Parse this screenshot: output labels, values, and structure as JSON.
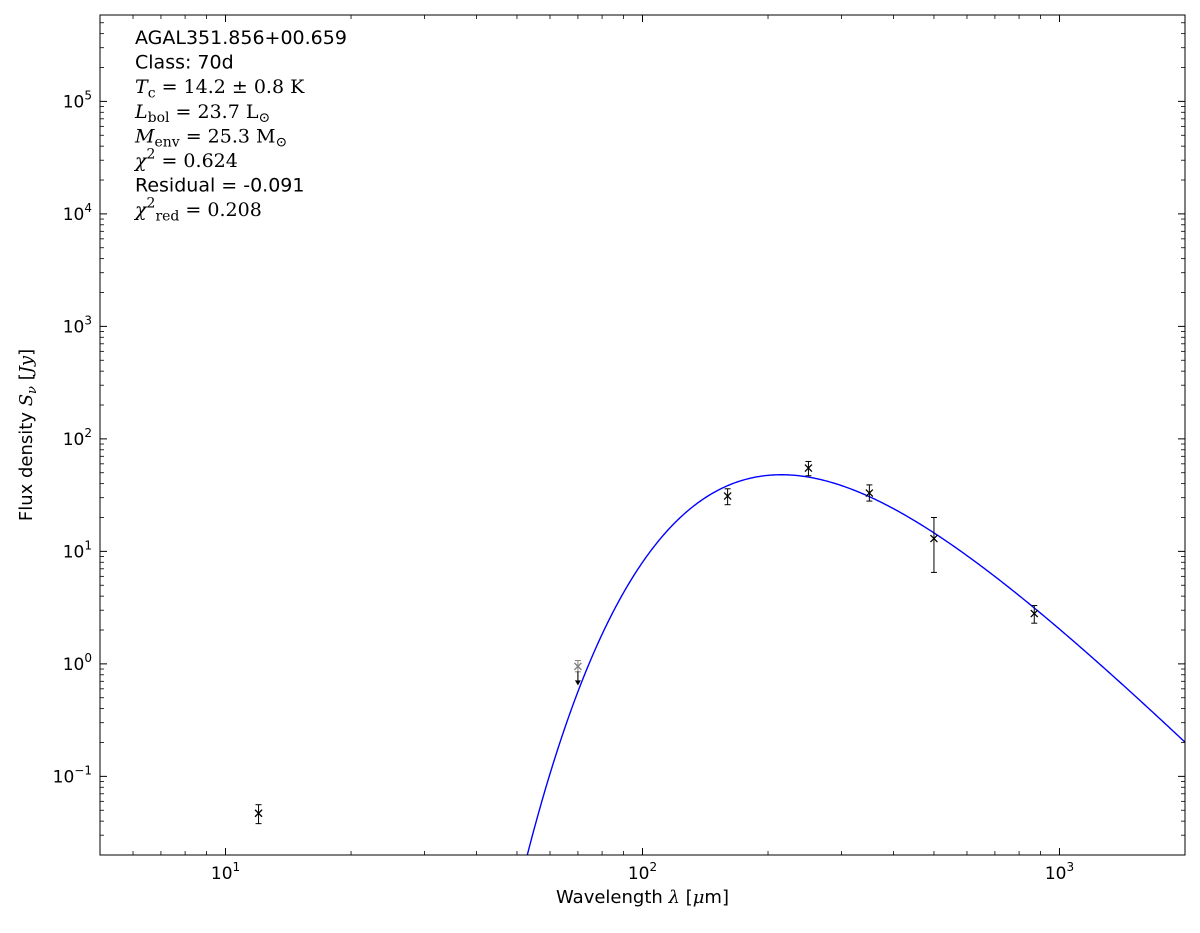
{
  "figure": {
    "background": "#ffffff"
  },
  "chart_data": {
    "type": "scatter",
    "title": "",
    "annotation": {
      "source_name": "AGAL351.856+00.659",
      "class": "70d",
      "T_c": "14.2 ± 0.8 K",
      "L_bol": "23.7 L⊙",
      "M_env": "25.3 M⊙",
      "chi2": "0.624",
      "residual": "-0.091",
      "chi2_red": "0.208",
      "lines": [
        [
          {
            "t": "AGAL351.856+00.659",
            "f": "sans"
          }
        ],
        [
          {
            "t": "Class: 70d",
            "f": "sans"
          }
        ],
        [
          {
            "t": "T",
            "f": "si"
          },
          {
            "t": "c",
            "f": "s",
            "p": "sub"
          },
          {
            "t": " = 14.2 ± 0.8 K",
            "f": "s"
          }
        ],
        [
          {
            "t": "L",
            "f": "si"
          },
          {
            "t": "bol",
            "f": "s",
            "p": "sub"
          },
          {
            "t": " = 23.7 L",
            "f": "s"
          },
          {
            "t": "⊙",
            "f": "s",
            "p": "sub"
          }
        ],
        [
          {
            "t": "M",
            "f": "si"
          },
          {
            "t": "env",
            "f": "s",
            "p": "sub"
          },
          {
            "t": " = 25.3 M",
            "f": "s"
          },
          {
            "t": "⊙",
            "f": "s",
            "p": "sub"
          }
        ],
        [
          {
            "t": "χ",
            "f": "si"
          },
          {
            "t": "2",
            "f": "s",
            "p": "sup"
          },
          {
            "t": " = 0.624",
            "f": "s"
          }
        ],
        [
          {
            "t": "Residual = -0.091",
            "f": "sans"
          }
        ],
        [
          {
            "t": "χ",
            "f": "si"
          },
          {
            "t": "2",
            "f": "s",
            "p": "sup"
          },
          {
            "t": "red",
            "f": "s",
            "p": "sub"
          },
          {
            "t": " = 0.208",
            "f": "s"
          }
        ]
      ]
    },
    "x_axis": {
      "label": "Wavelength λ [μm]",
      "label_segments": [
        {
          "t": "Wavelength ",
          "f": "sans"
        },
        {
          "t": "λ",
          "f": "si"
        },
        {
          "t": " [",
          "f": "sans"
        },
        {
          "t": "μ",
          "f": "si"
        },
        {
          "t": "m]",
          "f": "sans"
        }
      ],
      "scale": "log",
      "range_um": [
        5,
        2000
      ],
      "major_ticks": [
        {
          "value": 10,
          "exp": "1"
        },
        {
          "value": 100,
          "exp": "2"
        },
        {
          "value": 1000,
          "exp": "3"
        }
      ]
    },
    "y_axis": {
      "label": "Flux density Sν [Jy]",
      "label_segments": [
        {
          "t": "Flux density ",
          "f": "sans"
        },
        {
          "t": "S",
          "f": "si"
        },
        {
          "t": "ν",
          "f": "si",
          "p": "sub"
        },
        {
          "t": " [",
          "f": "sans"
        },
        {
          "t": "Jy",
          "f": "si"
        },
        {
          "t": "]",
          "f": "sans"
        }
      ],
      "scale": "log",
      "range_jy": [
        0.02,
        586000
      ],
      "major_ticks": [
        {
          "value": 0.1,
          "exp": "−1"
        },
        {
          "value": 1,
          "exp": "0"
        },
        {
          "value": 10,
          "exp": "1"
        },
        {
          "value": 100,
          "exp": "2"
        },
        {
          "value": 1000,
          "exp": "3"
        },
        {
          "value": 10000,
          "exp": "4"
        },
        {
          "value": 100000,
          "exp": "5"
        }
      ]
    },
    "points": [
      {
        "wavelength_um": 12,
        "flux_jy": 0.047,
        "err_minus": 0.009,
        "err_plus": 0.009
      },
      {
        "wavelength_um": 70,
        "flux_jy": 0.95,
        "err_minus": 0.1,
        "err_plus": 0.12,
        "upper_limit_arrow": true,
        "color": "#808080"
      },
      {
        "wavelength_um": 160,
        "flux_jy": 31,
        "err_minus": 5,
        "err_plus": 5
      },
      {
        "wavelength_um": 250,
        "flux_jy": 55,
        "err_minus": 8,
        "err_plus": 8
      },
      {
        "wavelength_um": 350,
        "flux_jy": 33,
        "err_minus": 5,
        "err_plus": 6
      },
      {
        "wavelength_um": 500,
        "flux_jy": 13,
        "err_minus": 6.5,
        "err_plus": 7
      },
      {
        "wavelength_um": 870,
        "flux_jy": 2.8,
        "err_minus": 0.5,
        "err_plus": 0.5
      }
    ],
    "fit_curve": {
      "model": "modified_blackbody",
      "temperature_K": 14.2,
      "beta": 1.75,
      "peak_flux_jy": 48,
      "wavelength_range_um": [
        45,
        2000
      ]
    },
    "colors": {
      "curve": "#0000ff",
      "points": "#000000",
      "upper_limit_point": "#808080",
      "frame": "#000000"
    }
  }
}
